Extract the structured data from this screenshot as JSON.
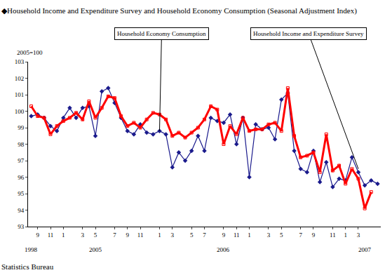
{
  "chart_data": {
    "type": "line",
    "title": "◆Household Income and Expenditure Survey and Household Economy Consumption (Seasonal Adjustment Index)",
    "y_label": "2005=100",
    "source": "Statistics Bureau",
    "categories": [
      null,
      "9",
      null,
      "11",
      null,
      "1",
      null,
      null,
      "3",
      null,
      "5",
      null,
      null,
      "7",
      null,
      "9",
      null,
      "11",
      null,
      null,
      "1",
      null,
      "3",
      null,
      null,
      "5",
      null,
      "7",
      null,
      null,
      "9",
      null,
      "11",
      null,
      "1",
      null,
      null,
      "3",
      null,
      "5",
      null,
      null,
      "7",
      null,
      "9",
      null,
      null,
      "11",
      null,
      "1",
      null,
      "3",
      null,
      null,
      null
    ],
    "series": [
      {
        "name": "Household Economy Consumption",
        "color": "#1a1a8c",
        "marker": "diamond",
        "line_style": "solid",
        "values": [
          99.7,
          99.8,
          99.6,
          99.1,
          98.8,
          99.6,
          100.2,
          99.6,
          100.2,
          100.3,
          98.5,
          101.2,
          101.4,
          100.5,
          99.6,
          98.8,
          98.6,
          99.2,
          98.7,
          98.6,
          98.8,
          98.6,
          96.6,
          97.5,
          97.0,
          97.6,
          98.5,
          97.6,
          99.6,
          99.4,
          99.3,
          99.8,
          98.0,
          99.6,
          96.0,
          99.2,
          98.9,
          99.0,
          98.3,
          100.7,
          101.1,
          97.6,
          96.5,
          96.3,
          97.6,
          95.7,
          96.9,
          95.4,
          95.9,
          95.8,
          97.2,
          96.3,
          95.5,
          95.8,
          95.6
        ]
      },
      {
        "name": "Household Income and Expenditure Survey",
        "color": "#ff0000",
        "marker": "square",
        "line_style": "solid",
        "values": [
          100.3,
          99.7,
          99.6,
          98.6,
          99.1,
          99.4,
          99.6,
          99.9,
          99.5,
          100.6,
          99.6,
          100.2,
          100.9,
          100.8,
          99.7,
          99.1,
          99.3,
          99.0,
          99.5,
          99.9,
          99.8,
          99.5,
          98.5,
          98.7,
          98.4,
          98.7,
          99.0,
          99.5,
          100.3,
          100.1,
          98.0,
          99.1,
          98.6,
          99.6,
          98.8,
          98.9,
          98.9,
          99.2,
          99.3,
          98.8,
          101.4,
          98.5,
          97.2,
          97.3,
          97.5,
          96.3,
          98.6,
          96.4,
          96.7,
          95.6,
          96.5,
          95.9,
          94.1,
          95.1,
          null
        ]
      }
    ],
    "annotations": [
      {
        "text": "Household Economy Consumption",
        "x": 20,
        "y": 98.8
      },
      {
        "text": "Household Income and Expenditure Survey",
        "x": 51,
        "y": 96.5
      },
      {
        "text": "1998",
        "x": 0
      },
      {
        "text": "2005",
        "x": 10
      },
      {
        "text": "2006",
        "x": 30
      },
      {
        "text": "2007",
        "x": 52
      }
    ],
    "ylim": [
      93,
      103
    ],
    "yticks": [
      93,
      94,
      95,
      96,
      97,
      98,
      99,
      100,
      101,
      102,
      103
    ],
    "grid": false
  }
}
